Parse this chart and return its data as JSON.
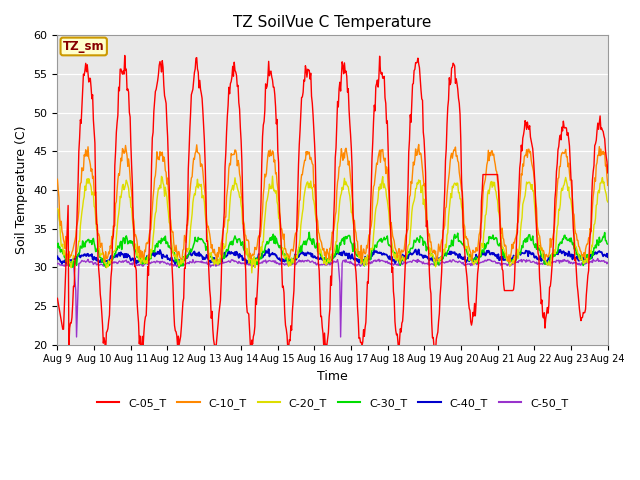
{
  "title": "TZ SoilVue C Temperature",
  "xlabel": "Time",
  "ylabel": "Soil Temperature (C)",
  "ylim": [
    20,
    60
  ],
  "background_color": "#e8e8e8",
  "annotation_label": "TZ_sm",
  "annotation_color": "#cc9900",
  "series_colors": {
    "C-05_T": "#ff0000",
    "C-10_T": "#ff8800",
    "C-20_T": "#dddd00",
    "C-30_T": "#00dd00",
    "C-40_T": "#0000cc",
    "C-50_T": "#9933cc"
  },
  "xtick_labels": [
    "Aug 9",
    "Aug 10",
    "Aug 11",
    "Aug 12",
    "Aug 13",
    "Aug 14",
    "Aug 15",
    "Aug 16",
    "Aug 17",
    "Aug 18",
    "Aug 19",
    "Aug 20",
    "Aug 21",
    "Aug 22",
    "Aug 23",
    "Aug 24"
  ],
  "ytick_values": [
    20,
    25,
    30,
    35,
    40,
    45,
    50,
    55,
    60
  ]
}
